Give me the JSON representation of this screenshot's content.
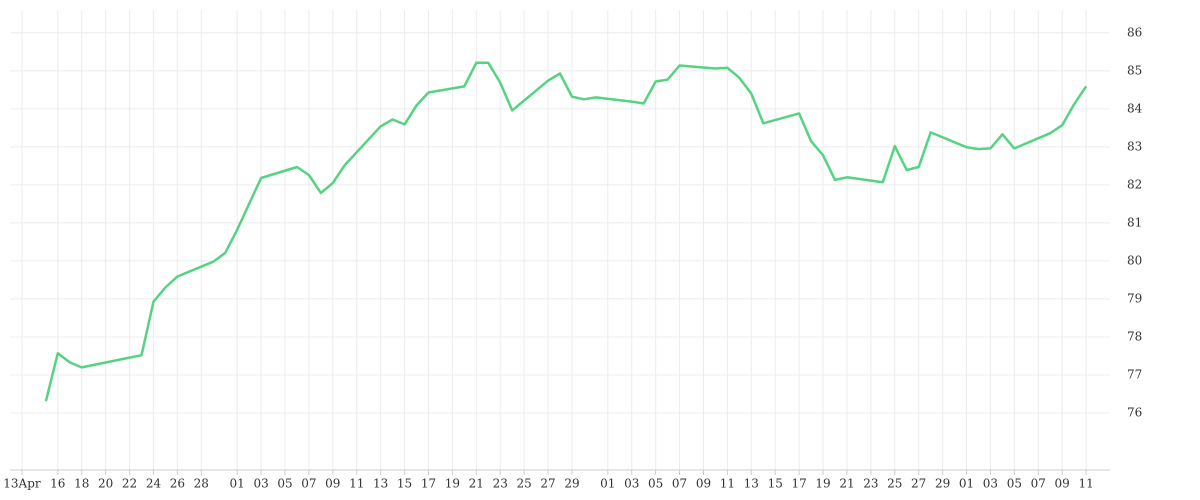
{
  "chart_data": {
    "type": "line",
    "x": [
      2,
      3,
      4,
      5,
      10,
      11,
      12,
      13,
      16,
      17,
      18,
      20,
      23,
      24,
      25,
      26,
      27,
      30,
      31,
      32,
      33,
      34,
      37,
      38,
      39,
      40,
      41,
      44,
      45,
      46,
      47,
      48,
      51,
      52,
      53,
      54,
      55,
      58,
      59,
      60,
      61,
      62,
      65,
      66,
      67,
      68,
      69,
      72,
      73,
      74,
      75,
      76,
      79,
      80,
      81,
      82,
      83,
      86,
      87,
      88,
      89
    ],
    "series": [
      {
        "color": "#55d383",
        "values": [
          76.31,
          77.57,
          77.33,
          77.2,
          77.52,
          78.93,
          79.3,
          79.59,
          79.98,
          80.21,
          80.82,
          82.18,
          82.47,
          82.26,
          81.79,
          82.05,
          82.52,
          83.54,
          83.72,
          83.59,
          84.09,
          84.43,
          84.59,
          85.21,
          85.21,
          84.69,
          83.96,
          84.74,
          84.93,
          84.32,
          84.25,
          84.3,
          84.19,
          84.14,
          84.72,
          84.77,
          85.14,
          85.06,
          85.08,
          84.82,
          84.4,
          83.62,
          83.88,
          83.15,
          82.78,
          82.13,
          82.2,
          82.07,
          83.02,
          82.39,
          82.47,
          83.38,
          82.99,
          82.94,
          82.96,
          83.33,
          82.96,
          83.36,
          83.57,
          84.12,
          84.59
        ]
      }
    ],
    "xlim": [
      -1,
      91
    ],
    "xticks": [
      {
        "value": 0,
        "label": "13Apr"
      },
      {
        "value": 3,
        "label": "16"
      },
      {
        "value": 5,
        "label": "18"
      },
      {
        "value": 7,
        "label": "20"
      },
      {
        "value": 9,
        "label": "22"
      },
      {
        "value": 11,
        "label": "24"
      },
      {
        "value": 13,
        "label": "26"
      },
      {
        "value": 15,
        "label": "28"
      },
      {
        "value": 18,
        "label": "01"
      },
      {
        "value": 20,
        "label": "03"
      },
      {
        "value": 22,
        "label": "05"
      },
      {
        "value": 24,
        "label": "07"
      },
      {
        "value": 26,
        "label": "09"
      },
      {
        "value": 28,
        "label": "11"
      },
      {
        "value": 30,
        "label": "13"
      },
      {
        "value": 32,
        "label": "15"
      },
      {
        "value": 34,
        "label": "17"
      },
      {
        "value": 36,
        "label": "19"
      },
      {
        "value": 38,
        "label": "21"
      },
      {
        "value": 40,
        "label": "23"
      },
      {
        "value": 42,
        "label": "25"
      },
      {
        "value": 44,
        "label": "27"
      },
      {
        "value": 46,
        "label": "29"
      },
      {
        "value": 49,
        "label": "01"
      },
      {
        "value": 51,
        "label": "03"
      },
      {
        "value": 53,
        "label": "05"
      },
      {
        "value": 55,
        "label": "07"
      },
      {
        "value": 57,
        "label": "09"
      },
      {
        "value": 59,
        "label": "11"
      },
      {
        "value": 61,
        "label": "13"
      },
      {
        "value": 63,
        "label": "15"
      },
      {
        "value": 65,
        "label": "17"
      },
      {
        "value": 67,
        "label": "19"
      },
      {
        "value": 69,
        "label": "21"
      },
      {
        "value": 71,
        "label": "23"
      },
      {
        "value": 73,
        "label": "25"
      },
      {
        "value": 75,
        "label": "27"
      },
      {
        "value": 77,
        "label": "29"
      },
      {
        "value": 79,
        "label": "01"
      },
      {
        "value": 81,
        "label": "03"
      },
      {
        "value": 83,
        "label": "05"
      },
      {
        "value": 85,
        "label": "07"
      },
      {
        "value": 87,
        "label": "09"
      },
      {
        "value": 89,
        "label": "11"
      }
    ],
    "ylim": [
      74.5,
      86.6
    ],
    "yticks": [
      76,
      77,
      78,
      79,
      80,
      81,
      82,
      83,
      84,
      85,
      86
    ],
    "grid": true
  }
}
